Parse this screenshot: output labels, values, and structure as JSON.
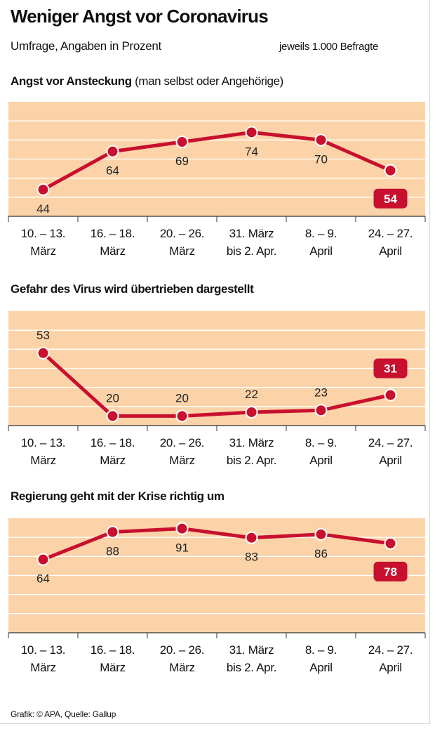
{
  "header": {
    "title": "Weniger Angst vor Coronavirus",
    "subtitle": "Umfrage, Angaben in Prozent",
    "note": "jeweils 1.000 Befragte"
  },
  "footer": {
    "credit": "Grafik: © APA, Quelle: Gallup"
  },
  "colors": {
    "line": "#c8102e",
    "band": "#fcd3a8",
    "grid": "#ffffff",
    "axis": "#333333"
  },
  "chart_data": [
    {
      "type": "line",
      "title": "Angst vor Ansteckung",
      "title_suffix": "(man selbst oder Angehörige)",
      "categories": [
        [
          "10. – 13.",
          "März"
        ],
        [
          "16. – 18.",
          "März"
        ],
        [
          "20. – 26.",
          "März"
        ],
        [
          "31. März",
          "bis 2. Apr."
        ],
        [
          "8. – 9.",
          "April"
        ],
        [
          "24. – 27.",
          "April"
        ]
      ],
      "values": [
        44,
        64,
        69,
        74,
        70,
        54
      ],
      "label_pos": [
        "below",
        "below",
        "below",
        "below",
        "below",
        "badge"
      ],
      "ylim": [
        30,
        90
      ],
      "highlight_last": true
    },
    {
      "type": "line",
      "title": "Gefahr des Virus wird übertrieben dargestellt",
      "title_suffix": "",
      "categories": [
        [
          "10. – 13.",
          "März"
        ],
        [
          "16. – 18.",
          "März"
        ],
        [
          "20. – 26.",
          "März"
        ],
        [
          "31. März",
          "bis 2. Apr."
        ],
        [
          "8. – 9.",
          "April"
        ],
        [
          "24. – 27.",
          "April"
        ]
      ],
      "values": [
        53,
        20,
        20,
        22,
        23,
        31
      ],
      "label_pos": [
        "above",
        "above",
        "above",
        "above",
        "above",
        "badge"
      ],
      "ylim": [
        15,
        75
      ],
      "highlight_last": true
    },
    {
      "type": "line",
      "title": "Regierung geht mit der Krise richtig um",
      "title_suffix": "",
      "categories": [
        [
          "10. – 13.",
          "März"
        ],
        [
          "16. – 18.",
          "März"
        ],
        [
          "20. – 26.",
          "März"
        ],
        [
          "31. März",
          "bis 2. Apr."
        ],
        [
          "8. – 9.",
          "April"
        ],
        [
          "24. – 27.",
          "April"
        ]
      ],
      "values": [
        64,
        88,
        91,
        83,
        86,
        78
      ],
      "label_pos": [
        "below",
        "below",
        "below",
        "below",
        "below",
        "badge"
      ],
      "ylim": [
        0,
        100
      ],
      "highlight_last": true
    }
  ]
}
